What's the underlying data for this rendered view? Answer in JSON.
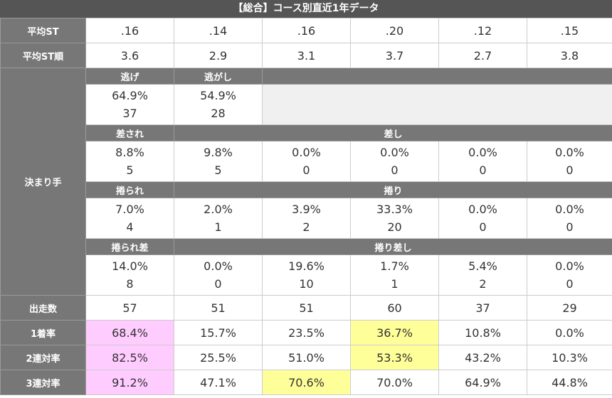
{
  "title": "【総合】コース別直近1年データ",
  "labels": {
    "avg_st": "平均ST",
    "avg_st_rank": "平均ST順",
    "kimarite": "決まり手",
    "starts": "出走数",
    "win_rate": "1着率",
    "top2_rate": "2連対率",
    "top3_rate": "3連対率"
  },
  "avg_st": [
    ".16",
    ".14",
    ".16",
    ".20",
    ".12",
    ".15"
  ],
  "avg_st_rank": [
    "3.6",
    "2.9",
    "3.1",
    "3.7",
    "2.7",
    "3.8"
  ],
  "kimarite": {
    "nige_label": "逃げ",
    "nigashi_label": "逃がし",
    "nige": {
      "pct": "64.9%",
      "count": "37"
    },
    "nigashi": {
      "pct": "54.9%",
      "count": "28"
    },
    "sasare_label": "差され",
    "sashi_label": "差し",
    "sasare_sashi": [
      {
        "pct": "8.8%",
        "count": "5"
      },
      {
        "pct": "9.8%",
        "count": "5"
      },
      {
        "pct": "0.0%",
        "count": "0"
      },
      {
        "pct": "0.0%",
        "count": "0"
      },
      {
        "pct": "0.0%",
        "count": "0"
      },
      {
        "pct": "0.0%",
        "count": "0"
      }
    ],
    "makurare_label": "捲られ",
    "makuri_label": "捲り",
    "makurare_makuri": [
      {
        "pct": "7.0%",
        "count": "4"
      },
      {
        "pct": "2.0%",
        "count": "1"
      },
      {
        "pct": "3.9%",
        "count": "2"
      },
      {
        "pct": "33.3%",
        "count": "20"
      },
      {
        "pct": "0.0%",
        "count": "0"
      },
      {
        "pct": "0.0%",
        "count": "0"
      }
    ],
    "makurarezashi_label": "捲られ差",
    "makurizashi_label": "捲り差し",
    "makurarezashi_makurizashi": [
      {
        "pct": "14.0%",
        "count": "8"
      },
      {
        "pct": "0.0%",
        "count": "0"
      },
      {
        "pct": "19.6%",
        "count": "10"
      },
      {
        "pct": "1.7%",
        "count": "1"
      },
      {
        "pct": "5.4%",
        "count": "2"
      },
      {
        "pct": "0.0%",
        "count": "0"
      }
    ]
  },
  "starts": [
    "57",
    "51",
    "51",
    "60",
    "37",
    "29"
  ],
  "win_rate": [
    "68.4%",
    "15.7%",
    "23.5%",
    "36.7%",
    "10.8%",
    "0.0%"
  ],
  "top2_rate": [
    "82.5%",
    "25.5%",
    "51.0%",
    "53.3%",
    "43.2%",
    "10.3%"
  ],
  "top3_rate": [
    "91.2%",
    "47.1%",
    "70.6%",
    "70.0%",
    "64.9%",
    "44.8%"
  ],
  "colors": {
    "highlight_pink": "#ffccff",
    "highlight_yellow": "#ffff99",
    "header_bg": "#777777",
    "title_bg": "#555555"
  }
}
